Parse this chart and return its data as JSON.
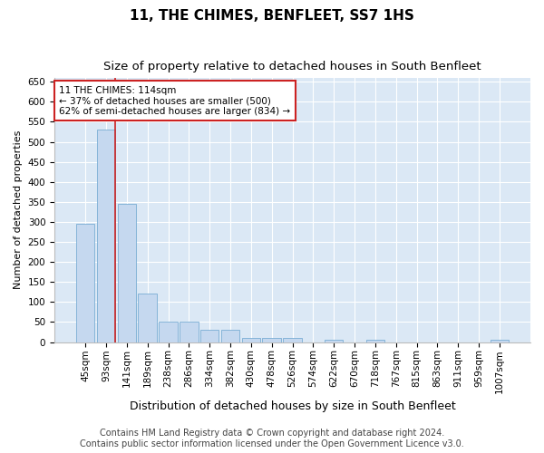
{
  "title": "11, THE CHIMES, BENFLEET, SS7 1HS",
  "subtitle": "Size of property relative to detached houses in South Benfleet",
  "xlabel": "Distribution of detached houses by size in South Benfleet",
  "ylabel": "Number of detached properties",
  "categories": [
    "45sqm",
    "93sqm",
    "141sqm",
    "189sqm",
    "238sqm",
    "286sqm",
    "334sqm",
    "382sqm",
    "430sqm",
    "478sqm",
    "526sqm",
    "574sqm",
    "622sqm",
    "670sqm",
    "718sqm",
    "767sqm",
    "815sqm",
    "863sqm",
    "911sqm",
    "959sqm",
    "1007sqm"
  ],
  "values": [
    295,
    530,
    345,
    120,
    50,
    50,
    30,
    30,
    10,
    10,
    10,
    0,
    5,
    0,
    5,
    0,
    0,
    0,
    0,
    0,
    5
  ],
  "bar_color": "#c5d8ef",
  "bar_edge_color": "#7aadd4",
  "vline_color": "#cc2222",
  "vline_x_index": 1,
  "annotation_text": "11 THE CHIMES: 114sqm\n← 37% of detached houses are smaller (500)\n62% of semi-detached houses are larger (834) →",
  "annotation_box_color": "#ffffff",
  "annotation_box_edge": "#cc2222",
  "ylim": [
    0,
    660
  ],
  "yticks": [
    0,
    50,
    100,
    150,
    200,
    250,
    300,
    350,
    400,
    450,
    500,
    550,
    600,
    650
  ],
  "footer": "Contains HM Land Registry data © Crown copyright and database right 2024.\nContains public sector information licensed under the Open Government Licence v3.0.",
  "bg_color": "#dbe8f5",
  "title_fontsize": 11,
  "subtitle_fontsize": 9.5,
  "xlabel_fontsize": 9,
  "ylabel_fontsize": 8,
  "tick_fontsize": 7.5,
  "footer_fontsize": 7,
  "annot_fontsize": 7.5
}
